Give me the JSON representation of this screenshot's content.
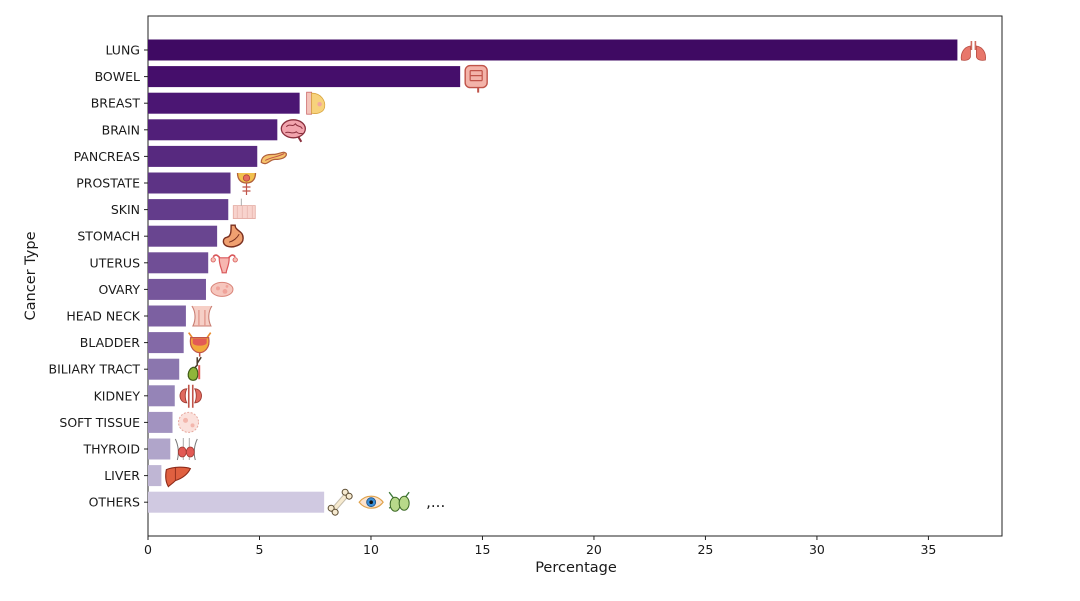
{
  "chart_data": {
    "type": "bar",
    "orientation": "horizontal",
    "xlabel": "Percentage",
    "ylabel": "Cancer Type",
    "xlim": [
      0,
      38.3
    ],
    "xticks": [
      0,
      5,
      10,
      15,
      20,
      25,
      30,
      35
    ],
    "grid": false,
    "legend": "none",
    "categories": [
      "LUNG",
      "BOWEL",
      "BREAST",
      "BRAIN",
      "PANCREAS",
      "PROSTATE",
      "SKIN",
      "STOMACH",
      "UTERUS",
      "OVARY",
      "HEAD NECK",
      "BLADDER",
      "BILIARY TRACT",
      "KIDNEY",
      "SOFT TISSUE",
      "THYROID",
      "LIVER",
      "OTHERS"
    ],
    "values": [
      36.3,
      14.0,
      6.8,
      5.8,
      4.9,
      3.7,
      3.6,
      3.1,
      2.7,
      2.6,
      1.7,
      1.6,
      1.4,
      1.2,
      1.1,
      1.0,
      0.6,
      7.9
    ],
    "colors": [
      "#3f0a63",
      "#450e6b",
      "#4b1673",
      "#511f79",
      "#57297f",
      "#5d3385",
      "#633c8b",
      "#694590",
      "#704e96",
      "#76569b",
      "#7c60a1",
      "#8369a7",
      "#8b76ae",
      "#9584b7",
      "#a293c0",
      "#b0a5ca",
      "#bfb6d4",
      "#d0c9e1"
    ],
    "icons": [
      "lungs-icon",
      "intestine-icon",
      "breast-icon",
      "brain-icon",
      "pancreas-icon",
      "prostate-icon",
      "skin-icon",
      "stomach-icon",
      "uterus-icon",
      "ovary-icon",
      "throat-icon",
      "bladder-icon",
      "gallbladder-icon",
      "kidney-icon",
      "soft-tissue-icon",
      "thyroid-icon",
      "liver-icon",
      "bone-icon"
    ],
    "others_extra_icons": [
      "eye-icon",
      "lymph-icon"
    ],
    "others_suffix": ",..."
  }
}
